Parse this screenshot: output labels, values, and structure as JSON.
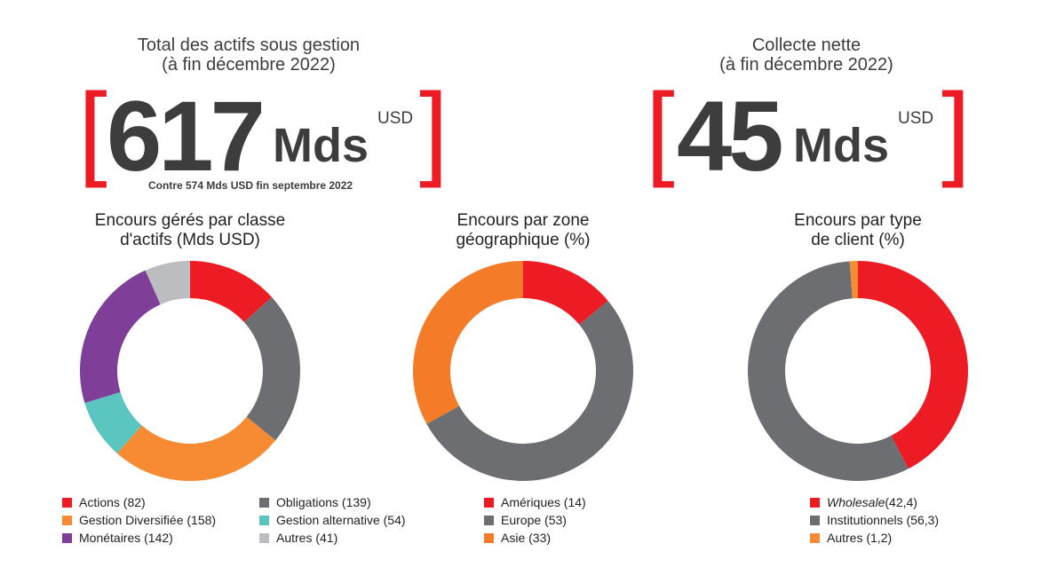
{
  "kpis": [
    {
      "title_l1": "Total des actifs sous gestion",
      "title_l2": "(à fin décembre 2022)",
      "value": "617",
      "unit": "Mds",
      "currency": "USD",
      "note": "Contre 574 Mds USD fin septembre 2022"
    },
    {
      "title_l1": "Collecte nette",
      "title_l2": "(à fin décembre 2022)",
      "value": "45",
      "unit": "Mds",
      "currency": "USD"
    }
  ],
  "brackets": {
    "open": "[",
    "close": "]"
  },
  "chart_data": [
    {
      "type": "pie",
      "donut": true,
      "title_l1": "Encours gérés par classe",
      "title_l2": "d'actifs (Mds USD)",
      "slices": [
        {
          "label": "Actions (82)",
          "value": 82,
          "color": "#ed1c24"
        },
        {
          "label": "Obligations (139)",
          "value": 139,
          "color": "#6d6e71"
        },
        {
          "label": "Gestion Diversifiée (158)",
          "value": 158,
          "color": "#f68b33"
        },
        {
          "label": "Gestion alternative (54)",
          "value": 54,
          "color": "#5bc5bf"
        },
        {
          "label": "Monétaires (142)",
          "value": 142,
          "color": "#7f3f98"
        },
        {
          "label": "Autres (41)",
          "value": 41,
          "color": "#bcbdc0"
        }
      ]
    },
    {
      "type": "pie",
      "donut": true,
      "title_l1": "Encours par zone",
      "title_l2": "géographique (%)",
      "slices": [
        {
          "label": "Amériques (14)",
          "value": 14,
          "color": "#ed1c24"
        },
        {
          "label": "Europe (53)",
          "value": 53,
          "color": "#6d6e71"
        },
        {
          "label": "Asie (33)",
          "value": 33,
          "color": "#f47b27"
        }
      ]
    },
    {
      "type": "pie",
      "donut": true,
      "title_l1": "Encours par type",
      "title_l2": "de client (%)",
      "slices": [
        {
          "label": "Wholesale",
          "suffix": " (42,4)",
          "value": 42.4,
          "color": "#ed1c24"
        },
        {
          "label": "Institutionnels (56,3)",
          "value": 56.3,
          "color": "#6d6e71"
        },
        {
          "label": "Autres (1,2)",
          "value": 1.2,
          "color": "#f68b33"
        }
      ]
    }
  ]
}
